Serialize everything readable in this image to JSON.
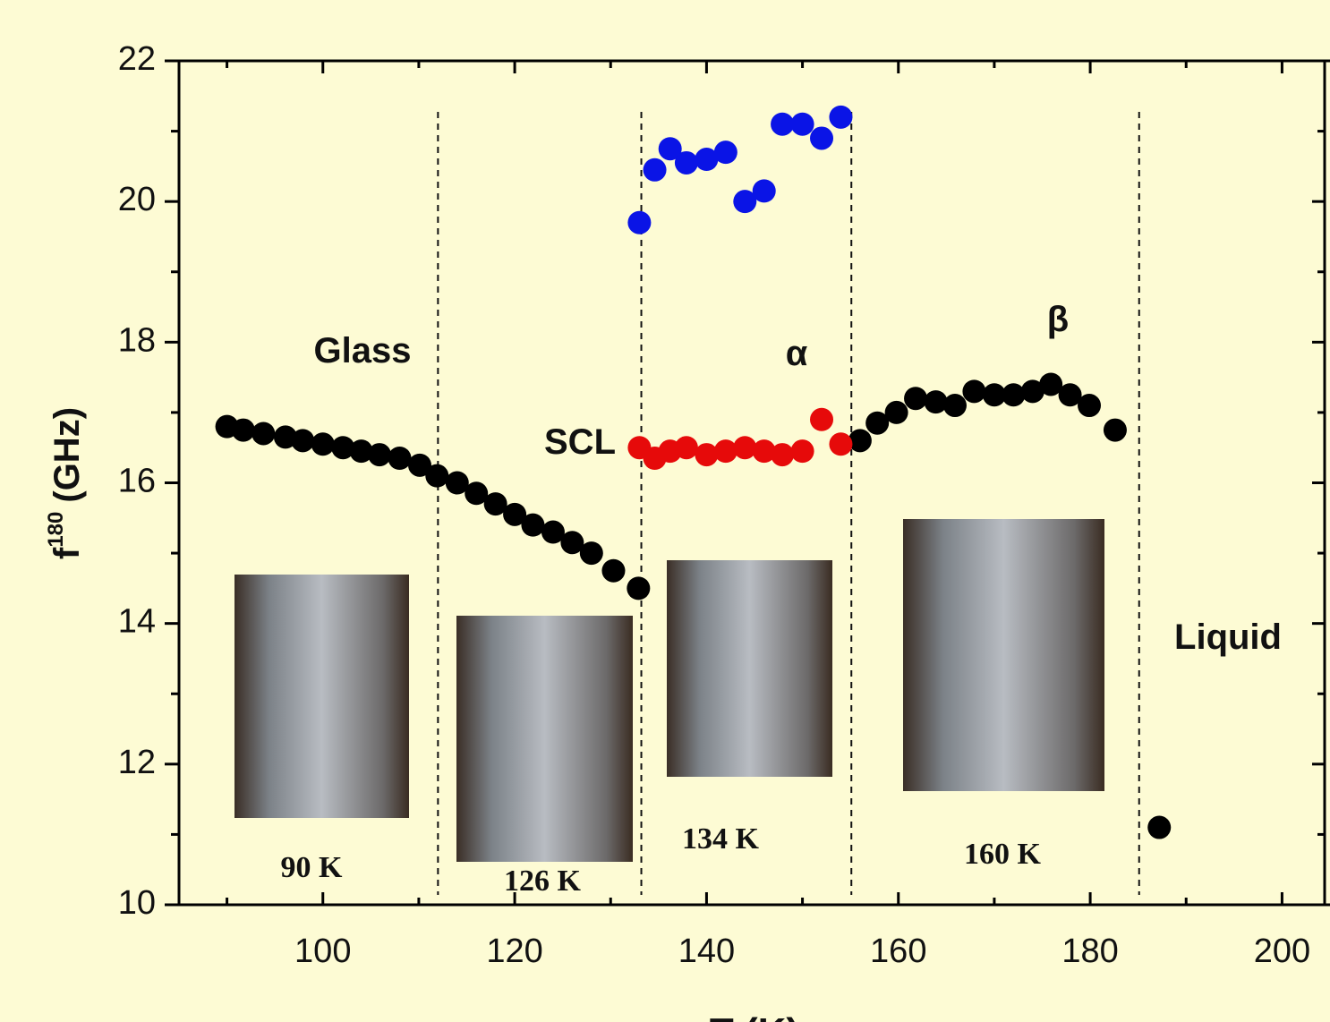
{
  "chart_data": {
    "type": "scatter",
    "y_label": {
      "main": "f",
      "sup": "180",
      "unit": "(GHz)"
    },
    "x_label": "T (K)",
    "xlim": [
      85,
      205
    ],
    "xticks": [
      100,
      120,
      140,
      160,
      180,
      200
    ],
    "ylim": [
      10,
      22
    ],
    "yticks": [
      10,
      12,
      14,
      16,
      18,
      20,
      22
    ],
    "series": [
      {
        "color": "#000000",
        "x": [
          90.0,
          91.7,
          93.8,
          96.1,
          97.9,
          100.0,
          102.1,
          104.0,
          105.9,
          108.0,
          110.1,
          111.9,
          114.0,
          116.0,
          118.0,
          120.0,
          121.9,
          124.0,
          126.0,
          128.0,
          130.3,
          132.9,
          156.0,
          157.8,
          159.8,
          161.8,
          163.9,
          165.9,
          167.9,
          170.0,
          172.0,
          174.0,
          175.9,
          177.9,
          179.9,
          182.6,
          187.2
        ],
        "values": [
          16.8,
          16.75,
          16.7,
          16.65,
          16.6,
          16.55,
          16.5,
          16.45,
          16.4,
          16.35,
          16.25,
          16.1,
          16.0,
          15.85,
          15.7,
          15.55,
          15.4,
          15.3,
          15.15,
          15.0,
          14.75,
          14.5,
          16.6,
          16.85,
          17.0,
          17.2,
          17.15,
          17.1,
          17.3,
          17.25,
          17.25,
          17.3,
          17.4,
          17.25,
          17.1,
          16.75,
          11.1
        ]
      },
      {
        "color": "#0a14e6",
        "x": [
          133.0,
          134.6,
          136.2,
          137.9,
          140.0,
          142.0,
          144.0,
          146.0,
          147.9,
          150.0,
          152.0,
          154.0
        ],
        "values": [
          19.7,
          20.45,
          20.75,
          20.55,
          20.6,
          20.7,
          20.0,
          20.15,
          21.1,
          21.1,
          20.9,
          21.2
        ]
      },
      {
        "color": "#e60a0a",
        "x": [
          133.0,
          134.6,
          136.2,
          137.9,
          140.0,
          142.0,
          144.0,
          146.0,
          147.9,
          150.0,
          152.0,
          154.0
        ],
        "values": [
          16.5,
          16.35,
          16.45,
          16.5,
          16.4,
          16.45,
          16.5,
          16.45,
          16.4,
          16.45,
          16.9,
          16.55
        ]
      }
    ],
    "phase_boundaries": [
      112,
      133.2,
      155.1,
      185.1
    ],
    "annotations": [
      "Glass",
      "SCL",
      "α",
      "β",
      "Liquid"
    ],
    "photo_captions": [
      "90 K",
      "126 K",
      "134 K",
      "160 K"
    ]
  }
}
